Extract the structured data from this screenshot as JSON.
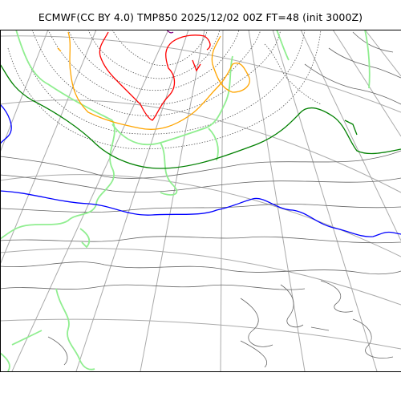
{
  "title": "ECMWF(CC BY 4.0) TMP850 2025/12/02 00Z FT=48 (init 3000Z)",
  "map": {
    "layers": [
      {
        "name": "coastline",
        "color": "#ffffff"
      },
      {
        "name": "graticule",
        "color": "#aaaaaa"
      },
      {
        "name": "isotherm-warm",
        "color": "#90ee90"
      },
      {
        "name": "isotherm-0C",
        "color": "#0000ff"
      },
      {
        "name": "isotherm-minus6C",
        "color": "#008000"
      },
      {
        "name": "isotherm-minus30C",
        "color": "#ffa500"
      },
      {
        "name": "isotherm-minus36C",
        "color": "#ff0000"
      },
      {
        "name": "isotherm-minus42C",
        "color": "#800080"
      }
    ]
  }
}
